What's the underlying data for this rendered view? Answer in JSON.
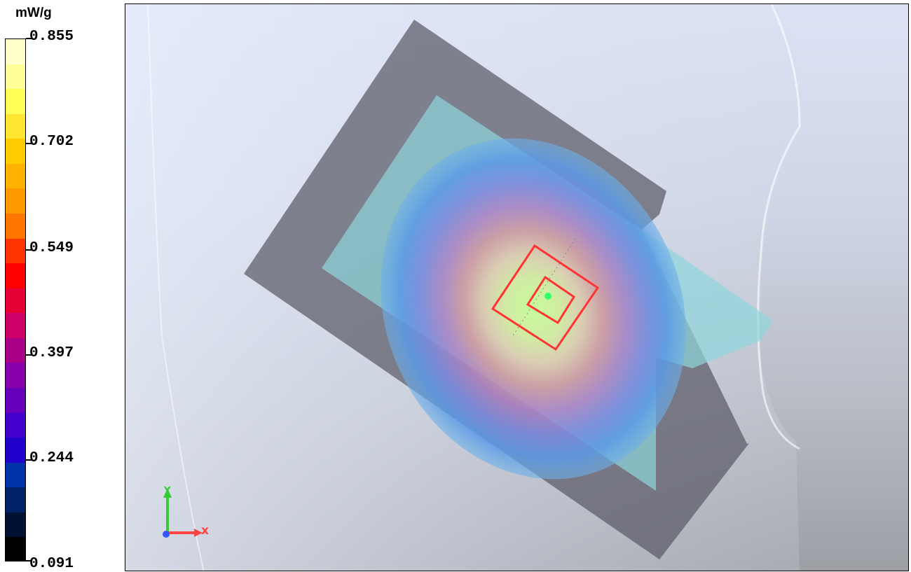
{
  "legend": {
    "unit": "mW/g",
    "ticks": [
      "0.855",
      "0.702",
      "0.549",
      "0.397",
      "0.244",
      "0.091"
    ],
    "colors": [
      "#ffffcc",
      "#ffff99",
      "#ffff55",
      "#ffe633",
      "#ffcc00",
      "#ffb300",
      "#ff9900",
      "#ff7700",
      "#ff3300",
      "#ff0000",
      "#e60033",
      "#cc0066",
      "#aa0088",
      "#8800aa",
      "#6600bb",
      "#4400cc",
      "#2200cc",
      "#0033aa",
      "#002266",
      "#001133",
      "#000000"
    ]
  },
  "view": {
    "axis_x_label": "x",
    "axis_y_label": "Y",
    "axis_x_color": "#ff4444",
    "axis_y_color": "#33cc33",
    "axis_z_color": "#3355ff"
  }
}
